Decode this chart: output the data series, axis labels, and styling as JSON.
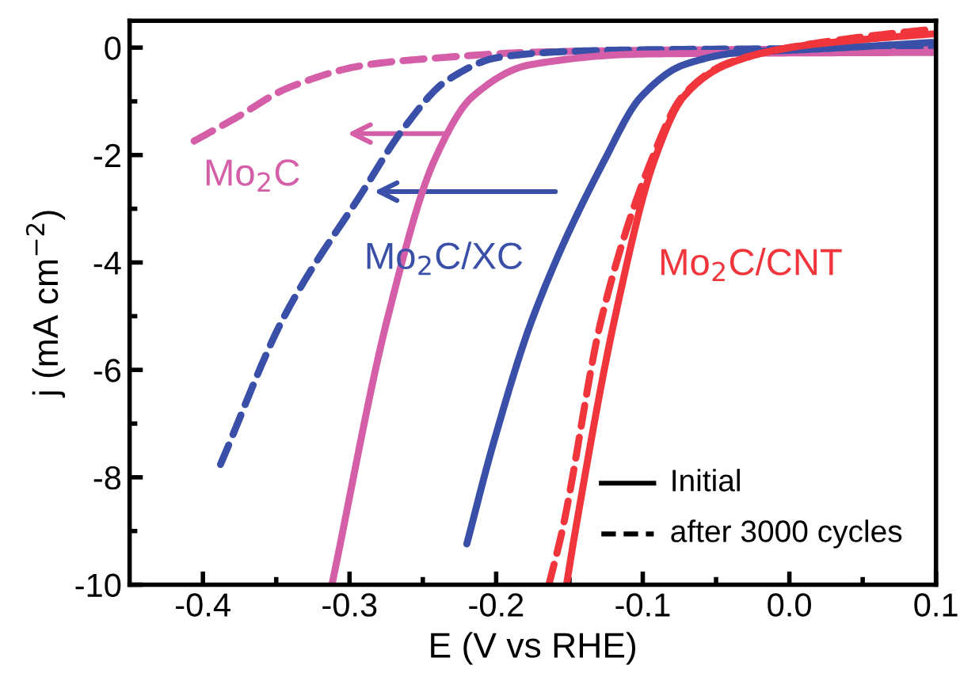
{
  "chart_data": {
    "type": "line",
    "xlabel": "E (V vs RHE)",
    "ylabel": "j (mA cm$^{−2}$)",
    "xlim": [
      -0.45,
      0.1
    ],
    "ylim": [
      -10,
      0.5
    ],
    "xticks": [
      {
        "value": -0.4,
        "label": "-0.4"
      },
      {
        "value": -0.35,
        "label": null
      },
      {
        "value": -0.3,
        "label": "-0.3"
      },
      {
        "value": -0.25,
        "label": null
      },
      {
        "value": -0.2,
        "label": "-0.2"
      },
      {
        "value": -0.15,
        "label": null
      },
      {
        "value": -0.1,
        "label": "-0.1"
      },
      {
        "value": -0.05,
        "label": null
      },
      {
        "value": 0.0,
        "label": "0.0"
      },
      {
        "value": 0.05,
        "label": null
      },
      {
        "value": 0.1,
        "label": "0.1"
      }
    ],
    "yticks": [
      {
        "value": -10,
        "label": "-10"
      },
      {
        "value": -9,
        "label": null
      },
      {
        "value": -8,
        "label": "-8"
      },
      {
        "value": -7,
        "label": null
      },
      {
        "value": -6,
        "label": "-6"
      },
      {
        "value": -5,
        "label": null
      },
      {
        "value": -4,
        "label": "-4"
      },
      {
        "value": -3,
        "label": null
      },
      {
        "value": -2,
        "label": "-2"
      },
      {
        "value": -1,
        "label": null
      },
      {
        "value": 0,
        "label": "0"
      }
    ],
    "grid": false,
    "marker": "none",
    "series": [
      {
        "color": "#d45fa8",
        "line_style": "dashed",
        "x": [
          -0.406,
          -0.377,
          -0.342,
          -0.288,
          -0.234,
          -0.18,
          -0.1,
          0.0,
          0.1
        ],
        "values": [
          -1.74,
          -1.3,
          -0.75,
          -0.32,
          -0.18,
          -0.09,
          -0.05,
          -0.03,
          -0.02
        ]
      },
      {
        "color": "#3a50a8",
        "line_style": "dashed",
        "x": [
          -0.388,
          -0.345,
          -0.291,
          -0.263,
          -0.234,
          -0.198,
          -0.15,
          -0.1,
          0.0,
          0.1
        ],
        "values": [
          -7.76,
          -5.03,
          -2.68,
          -1.5,
          -0.62,
          -0.18,
          -0.07,
          -0.04,
          -0.02,
          0.0
        ]
      },
      {
        "color": "#d45fa8",
        "line_style": "solid",
        "x": [
          -0.312,
          -0.274,
          -0.242,
          -0.216,
          -0.177,
          -0.1,
          0.0,
          0.1
        ],
        "values": [
          -10,
          -5.03,
          -2.09,
          -0.91,
          -0.32,
          -0.12,
          -0.1,
          -0.09
        ]
      },
      {
        "color": "#3a50a8",
        "line_style": "solid",
        "x": [
          -0.22,
          -0.202,
          -0.175,
          -0.126,
          -0.101,
          -0.072,
          -0.03,
          0.0,
          0.05,
          0.1
        ],
        "values": [
          -9.24,
          -7.38,
          -5.03,
          -2.09,
          -0.91,
          -0.32,
          -0.08,
          -0.05,
          0.02,
          0.1
        ]
      },
      {
        "color": "#f0363c",
        "line_style": "dashed",
        "x": [
          -0.164,
          -0.155,
          -0.128,
          -0.094,
          -0.073,
          -0.043,
          0.0,
          0.05,
          0.1
        ],
        "values": [
          -10,
          -9.0,
          -5.03,
          -2.09,
          -0.91,
          -0.3,
          0.0,
          0.2,
          0.35
        ]
      },
      {
        "color": "#f0363c",
        "line_style": "solid",
        "x": [
          -0.152,
          -0.146,
          -0.119,
          -0.092,
          -0.072,
          -0.043,
          0.0,
          0.05,
          0.1
        ],
        "values": [
          -10,
          -9.0,
          -5.03,
          -2.09,
          -0.91,
          -0.32,
          0.0,
          0.15,
          0.26
        ]
      }
    ],
    "annotations": [
      "Mo$_{2}$C",
      "Mo$_{2}$C/XC",
      "Mo$_{2}$C/CNT",
      "Initial",
      "after 3000 cycles"
    ]
  }
}
